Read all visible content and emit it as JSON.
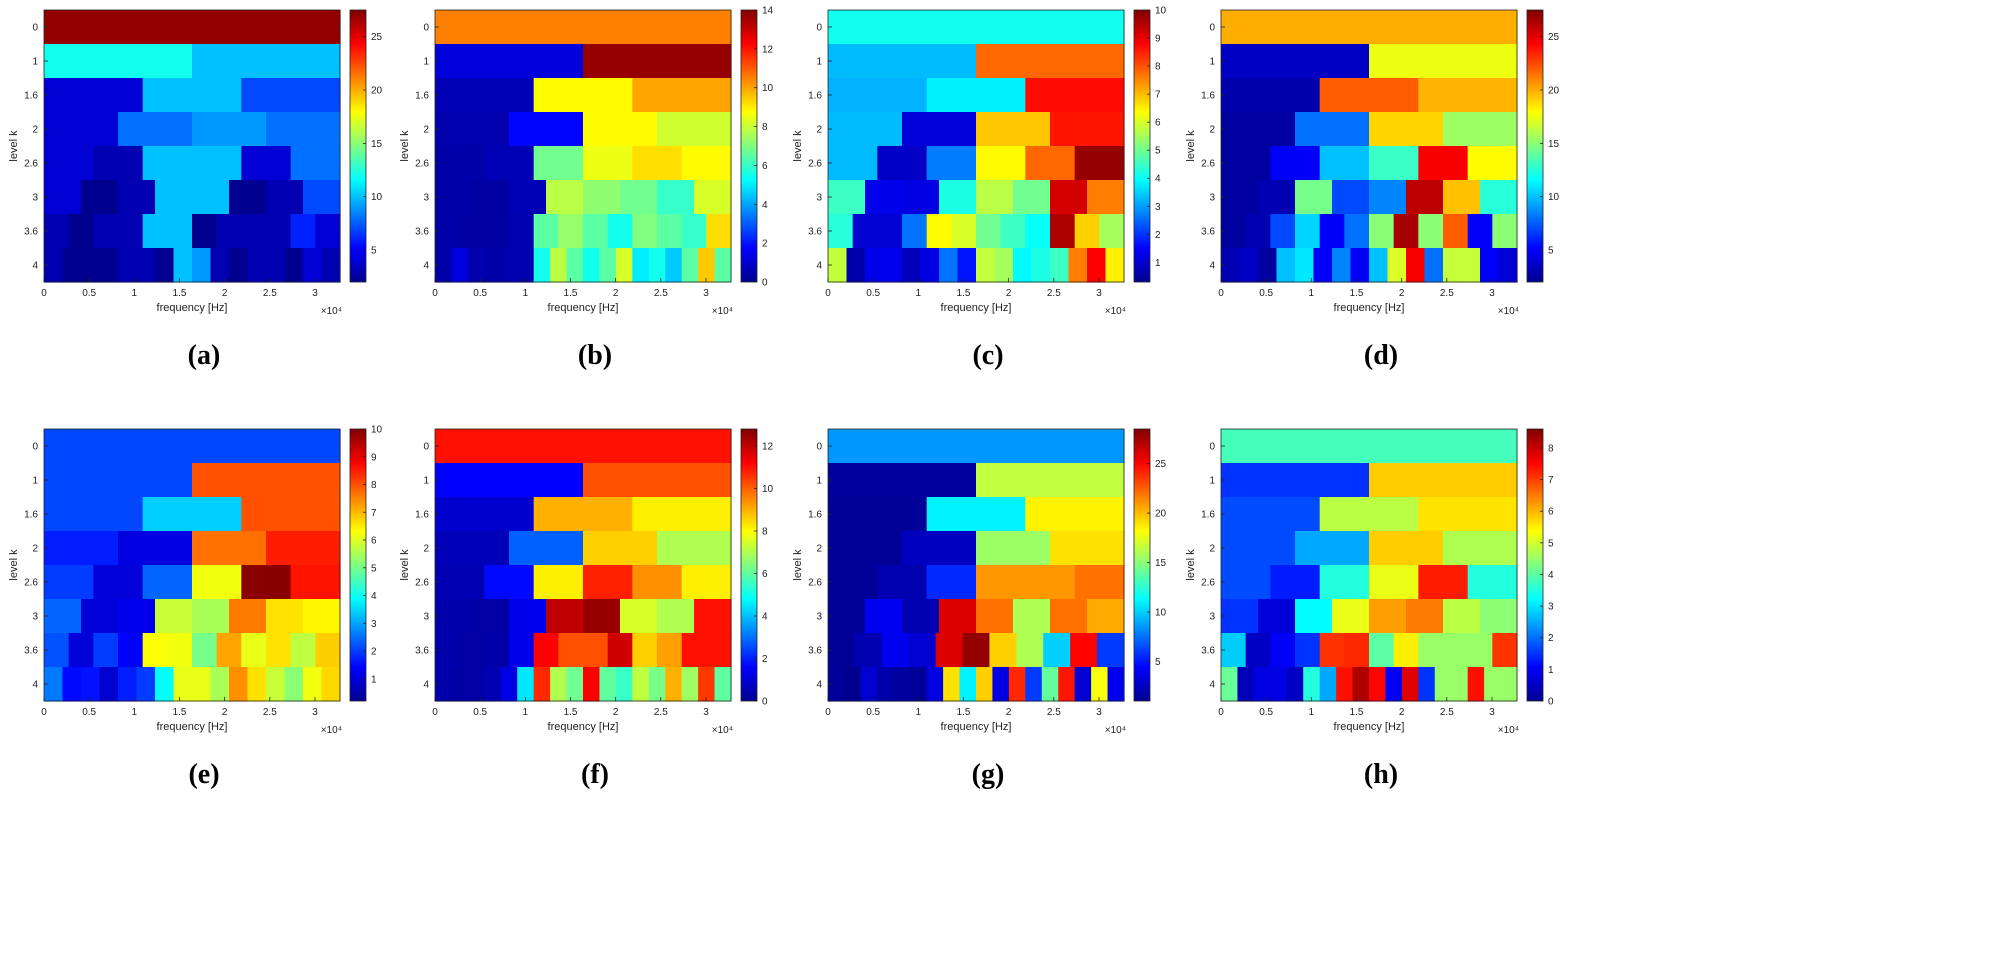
{
  "colormap": [
    "#00008f",
    "#0000ff",
    "#0080ff",
    "#00ffff",
    "#80ff80",
    "#ffff00",
    "#ff8000",
    "#ff0000",
    "#800000"
  ],
  "chart_data": [
    {
      "type": "heatmap",
      "panel_label": "(a)",
      "xlabel": "frequency [Hz]",
      "ylabel": "level k",
      "x_exponent": "×10⁴",
      "xlim": [
        0,
        3.2768
      ],
      "x_ticks": [
        "0",
        "0.5",
        "1",
        "1.5",
        "2",
        "2.5",
        "3"
      ],
      "y_ticks": [
        "0",
        "1",
        "1.6",
        "2",
        "2.6",
        "3",
        "3.6",
        "4"
      ],
      "clim": [
        2,
        27.5
      ],
      "colorbar_ticks": [
        5,
        10,
        15,
        20,
        25
      ],
      "rows": [
        [
          27
        ],
        [
          12,
          10
        ],
        [
          4,
          10,
          7
        ],
        [
          4,
          8,
          9,
          8
        ],
        [
          4,
          3,
          10,
          10,
          4,
          8
        ],
        [
          4,
          2,
          3,
          10,
          10,
          2,
          3,
          7
        ],
        [
          3,
          2,
          3,
          3,
          10,
          10,
          2,
          3,
          3,
          3,
          6,
          4
        ],
        [
          3,
          2,
          2,
          2,
          3,
          3,
          2,
          10,
          9,
          3,
          2,
          3,
          3,
          2,
          4,
          3
        ]
      ]
    },
    {
      "type": "heatmap",
      "panel_label": "(b)",
      "xlabel": "frequency [Hz]",
      "ylabel": "level k",
      "x_exponent": "×10⁴",
      "xlim": [
        0,
        3.2768
      ],
      "x_ticks": [
        "0",
        "0.5",
        "1",
        "1.5",
        "2",
        "2.5",
        "3"
      ],
      "y_ticks": [
        "0",
        "1",
        "1.6",
        "2",
        "2.6",
        "3",
        "3.6",
        "4"
      ],
      "clim": [
        0,
        14
      ],
      "colorbar_ticks": [
        0,
        2,
        4,
        6,
        8,
        10,
        12,
        14
      ],
      "rows": [
        [
          10.5
        ],
        [
          1.2,
          13.7
        ],
        [
          0.6,
          8.8,
          10
        ],
        [
          0.5,
          1.8,
          8.8,
          8.1
        ],
        [
          0.4,
          0.6,
          6.8,
          8.5,
          9.2,
          8.8
        ],
        [
          0.4,
          0.3,
          0.6,
          7.8,
          7.2,
          6.8,
          6,
          8.2
        ],
        [
          0.4,
          0.3,
          0.3,
          0.5,
          6.5,
          7.3,
          6.5,
          5.5,
          7,
          6.5,
          6,
          9.2
        ],
        [
          0.4,
          1.2,
          0.5,
          0.4,
          0.5,
          0.5,
          5.5,
          7.8,
          6.5,
          5.5,
          6.5,
          8.2,
          5,
          5.5,
          4.5,
          6.5,
          9.5,
          6.5
        ]
      ]
    },
    {
      "type": "heatmap",
      "panel_label": "(c)",
      "xlabel": "frequency [Hz]",
      "ylabel": "level k",
      "x_exponent": "×10⁴",
      "xlim": [
        0,
        3.2768
      ],
      "x_ticks": [
        "0",
        "0.5",
        "1",
        "1.5",
        "2",
        "2.5",
        "3"
      ],
      "y_ticks": [
        "0",
        "1",
        "1.6",
        "2",
        "2.6",
        "3",
        "3.6",
        "4"
      ],
      "clim": [
        0.3,
        10
      ],
      "colorbar_ticks": [
        1,
        2,
        3,
        4,
        5,
        6,
        7,
        8,
        9,
        10
      ],
      "rows": [
        [
          4.1
        ],
        [
          3.3,
          7.8
        ],
        [
          3.2,
          3.8,
          8.7
        ],
        [
          3.3,
          1.1,
          6.9,
          8.6
        ],
        [
          3.3,
          0.9,
          2.7,
          6.4,
          7.8,
          9.8
        ],
        [
          4.5,
          1.3,
          1.2,
          4.2,
          5.7,
          5,
          9.2,
          7.6
        ],
        [
          4.3,
          1,
          1,
          2.6,
          6.4,
          6,
          5,
          4.5,
          4,
          9.6,
          6.8,
          5.5
        ],
        [
          5.8,
          0.6,
          1.3,
          1.3,
          0.8,
          1.2,
          2.6,
          1.7,
          5.8,
          5.5,
          3.9,
          4.2,
          4.5,
          7.6,
          8.8,
          6.5
        ]
      ]
    },
    {
      "type": "heatmap",
      "panel_label": "(d)",
      "xlabel": "frequency [Hz]",
      "ylabel": "level k",
      "x_exponent": "×10⁴",
      "xlim": [
        0,
        3.2768
      ],
      "x_ticks": [
        "0",
        "0.5",
        "1",
        "1.5",
        "2",
        "2.5",
        "3"
      ],
      "y_ticks": [
        "0",
        "1",
        "1.6",
        "2",
        "2.6",
        "3",
        "3.6",
        "4"
      ],
      "clim": [
        2,
        27.5
      ],
      "colorbar_ticks": [
        5,
        10,
        15,
        20,
        25
      ],
      "rows": [
        [
          20
        ],
        [
          3.5,
          17.5
        ],
        [
          2.8,
          22,
          19.8
        ],
        [
          2.5,
          8,
          19,
          15.5
        ],
        [
          2.5,
          5,
          10,
          13,
          24.5,
          18
        ],
        [
          2.5,
          3,
          14.5,
          7,
          8.5,
          26,
          19.5,
          12.5
        ],
        [
          2.5,
          3,
          7,
          10.5,
          5,
          8,
          15,
          26.5,
          15,
          22,
          5,
          15
        ],
        [
          3,
          3.5,
          2.5,
          10,
          11,
          5,
          8.5,
          5,
          10,
          17,
          24.5,
          8,
          16.5,
          16.5,
          5,
          4
        ]
      ]
    },
    {
      "type": "heatmap",
      "panel_label": "(e)",
      "xlabel": "frequency [Hz]",
      "ylabel": "level k",
      "x_exponent": "×10⁴",
      "xlim": [
        0,
        3.2768
      ],
      "x_ticks": [
        "0",
        "0.5",
        "1",
        "1.5",
        "2",
        "2.5",
        "3"
      ],
      "y_ticks": [
        "0",
        "1",
        "1.6",
        "2",
        "2.6",
        "3",
        "3.6",
        "4"
      ],
      "clim": [
        0.2,
        10
      ],
      "colorbar_ticks": [
        1,
        2,
        3,
        4,
        5,
        6,
        7,
        8,
        9,
        10
      ],
      "rows": [
        [
          2.1
        ],
        [
          2.1,
          8
        ],
        [
          2.1,
          3.4,
          8
        ],
        [
          1.7,
          1.1,
          7.7,
          8.5
        ],
        [
          2,
          1,
          2.4,
          6.2,
          9.9,
          8.6
        ],
        [
          2.4,
          1,
          1.2,
          5.8,
          5.5,
          7.6,
          6.6,
          6.4
        ],
        [
          2.2,
          1,
          2,
          1.4,
          6.3,
          6.2,
          5,
          7.2,
          6.1,
          6.6,
          5.7,
          6.8
        ],
        [
          2.6,
          1.5,
          1.6,
          0.9,
          1.7,
          2,
          3.9,
          6.1,
          6.1,
          5.5,
          7.4,
          6.6,
          5.8,
          5.2,
          6.2,
          6.7
        ]
      ]
    },
    {
      "type": "heatmap",
      "panel_label": "(f)",
      "xlabel": "frequency [Hz]",
      "ylabel": "level k",
      "x_exponent": "×10⁴",
      "xlim": [
        0,
        3.2768
      ],
      "x_ticks": [
        "0",
        "0.5",
        "1",
        "1.5",
        "2",
        "2.5",
        "3"
      ],
      "y_ticks": [
        "0",
        "1",
        "1.6",
        "2",
        "2.6",
        "3",
        "3.6",
        "4"
      ],
      "clim": [
        0,
        12.8
      ],
      "colorbar_ticks": [
        0,
        2,
        4,
        6,
        8,
        10,
        12
      ],
      "rows": [
        [
          11
        ],
        [
          1.6,
          10.2
        ],
        [
          0.9,
          9,
          8.2
        ],
        [
          0.6,
          2.8,
          8.6,
          7
        ],
        [
          0.5,
          1.7,
          8.2,
          10.8,
          9.4,
          8.2
        ],
        [
          0.4,
          0.3,
          1.3,
          12,
          12.5,
          7.5,
          7,
          11
        ],
        [
          0.4,
          0.3,
          0.4,
          1.3,
          11.2,
          10.2,
          10.2,
          11.8,
          8.6,
          9.2,
          11,
          11
        ],
        [
          0.4,
          0.3,
          0.3,
          0.5,
          1.2,
          4.5,
          10.7,
          7,
          6.2,
          11.2,
          6,
          5.5,
          7.2,
          6.3,
          9,
          6.8,
          10.5,
          6
        ]
      ]
    },
    {
      "type": "heatmap",
      "panel_label": "(g)",
      "xlabel": "frequency [Hz]",
      "ylabel": "level k",
      "x_exponent": "×10⁴",
      "xlim": [
        0,
        3.2768
      ],
      "x_ticks": [
        "0",
        "0.5",
        "1",
        "1.5",
        "2",
        "2.5",
        "3"
      ],
      "y_ticks": [
        "0",
        "1",
        "1.6",
        "2",
        "2.6",
        "3",
        "3.6",
        "4"
      ],
      "clim": [
        1,
        28.5
      ],
      "colorbar_ticks": [
        5,
        10,
        15,
        20,
        25
      ],
      "rows": [
        [
          8.5
        ],
        [
          1.5,
          16.5
        ],
        [
          1.3,
          11,
          18.5
        ],
        [
          1.3,
          2.5,
          15.5,
          19
        ],
        [
          1.3,
          2,
          5.5,
          21,
          21,
          22
        ],
        [
          1.3,
          4,
          2,
          26,
          22,
          16,
          22,
          20.5
        ],
        [
          1.3,
          2,
          4,
          3,
          26,
          28,
          19.5,
          16,
          10,
          25,
          6
        ],
        [
          1.3,
          1,
          3,
          1.8,
          1.5,
          1.2,
          3.5,
          19,
          11,
          19.5,
          3.5,
          24,
          6,
          14,
          24.5,
          3,
          18,
          4
        ]
      ]
    },
    {
      "type": "heatmap",
      "panel_label": "(h)",
      "xlabel": "frequency [Hz]",
      "ylabel": "level k",
      "x_exponent": "×10⁴",
      "xlim": [
        0,
        3.2768
      ],
      "x_ticks": [
        "0",
        "0.5",
        "1",
        "1.5",
        "2",
        "2.5",
        "3"
      ],
      "y_ticks": [
        "0",
        "1",
        "1.6",
        "2",
        "2.6",
        "3",
        "3.6",
        "4"
      ],
      "clim": [
        0,
        8.6
      ],
      "colorbar_ticks": [
        0,
        1,
        2,
        3,
        4,
        5,
        6,
        7,
        8
      ],
      "rows": [
        [
          3.8
        ],
        [
          1.5,
          5.8
        ],
        [
          1.7,
          4.8,
          5.6
        ],
        [
          1.7,
          2.5,
          5.8,
          4.7
        ],
        [
          1.7,
          1.3,
          3.5,
          5.2,
          7.3,
          3.5
        ],
        [
          1.5,
          0.7,
          3.2,
          5.2,
          6.2,
          6.5,
          4.8,
          4.4
        ],
        [
          2.8,
          0.5,
          1,
          1.5,
          7.1,
          7.2,
          4,
          5.5,
          4.5,
          4.5,
          4.5,
          7.1
        ],
        [
          4.1,
          0.4,
          0.8,
          0.8,
          0.5,
          3.5,
          2.5,
          7.4,
          8.2,
          7.5,
          1,
          7.8,
          1.5,
          4.5,
          4.5,
          7.4,
          4.5,
          4.5
        ]
      ]
    }
  ]
}
